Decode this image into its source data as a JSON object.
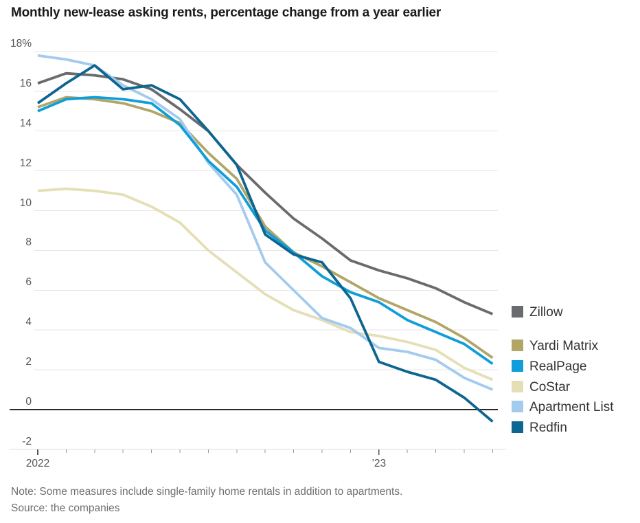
{
  "title": "Monthly new-lease asking rents, percentage change from a year earlier",
  "note": "Note: Some measures include single-family home rentals in addition to apartments.",
  "source": "Source: the companies",
  "legend": [
    {
      "label": "Zillow",
      "color": "#6a6b6e"
    },
    {
      "label": "Yardi Matrix",
      "color": "#b1a567"
    },
    {
      "label": "RealPage",
      "color": "#0f9ed9"
    },
    {
      "label": "CoStar",
      "color": "#e4dfb6"
    },
    {
      "label": "Apartment List",
      "color": "#a3cbee"
    },
    {
      "label": "Redfin",
      "color": "#0d6591"
    }
  ],
  "chart_data": {
    "type": "line",
    "x": [
      "Jan 2022",
      "Feb 2022",
      "Mar 2022",
      "Apr 2022",
      "May 2022",
      "Jun 2022",
      "Jul 2022",
      "Aug 2022",
      "Sep 2022",
      "Oct 2022",
      "Nov 2022",
      "Dec 2022",
      "Jan 2023",
      "Feb 2023",
      "Mar 2023",
      "Apr 2023",
      "May 2023"
    ],
    "x_tick_labels": [
      {
        "index": 0,
        "label": "2022"
      },
      {
        "index": 12,
        "label": "’23"
      }
    ],
    "ytick_values": [
      18,
      16,
      14,
      12,
      10,
      8,
      6,
      4,
      2,
      0,
      -2
    ],
    "ytick_labels": [
      "18%",
      "16",
      "14",
      "12",
      "10",
      "8",
      "6",
      "4",
      "2",
      "0",
      "-2"
    ],
    "ylim": [
      -2,
      18
    ],
    "grid": true,
    "legend_position": "right",
    "series": [
      {
        "name": "Zillow",
        "color": "#6a6b6e",
        "values": [
          16.4,
          16.9,
          16.8,
          16.6,
          16.1,
          15.1,
          14.0,
          12.3,
          10.9,
          9.6,
          8.6,
          7.5,
          7.0,
          6.6,
          6.1,
          5.4,
          4.8
        ]
      },
      {
        "name": "Yardi Matrix",
        "color": "#b1a567",
        "values": [
          15.2,
          15.7,
          15.6,
          15.4,
          15.0,
          14.4,
          12.9,
          11.6,
          9.2,
          7.9,
          7.2,
          6.4,
          5.6,
          5.0,
          4.4,
          3.6,
          2.6
        ]
      },
      {
        "name": "RealPage",
        "color": "#0f9ed9",
        "values": [
          15.0,
          15.6,
          15.7,
          15.6,
          15.4,
          14.3,
          12.5,
          11.2,
          9.0,
          7.9,
          6.7,
          5.9,
          5.4,
          4.5,
          3.9,
          3.3,
          2.3
        ]
      },
      {
        "name": "CoStar",
        "color": "#e4dfb6",
        "values": [
          11.0,
          11.1,
          11.0,
          10.8,
          10.2,
          9.4,
          8.0,
          6.9,
          5.8,
          5.0,
          4.5,
          3.9,
          3.7,
          3.4,
          3.0,
          2.1,
          1.5
        ]
      },
      {
        "name": "Apartment List",
        "color": "#a3cbee",
        "values": [
          17.8,
          17.6,
          17.3,
          16.3,
          15.6,
          14.6,
          12.4,
          10.8,
          7.4,
          6.0,
          4.6,
          4.1,
          3.1,
          2.9,
          2.5,
          1.6,
          1.0
        ]
      },
      {
        "name": "Redfin",
        "color": "#0d6591",
        "values": [
          15.4,
          16.4,
          17.3,
          16.1,
          16.3,
          15.6,
          14.0,
          12.3,
          8.8,
          7.8,
          7.4,
          5.6,
          2.4,
          1.9,
          1.5,
          0.6,
          -0.6
        ]
      }
    ]
  }
}
